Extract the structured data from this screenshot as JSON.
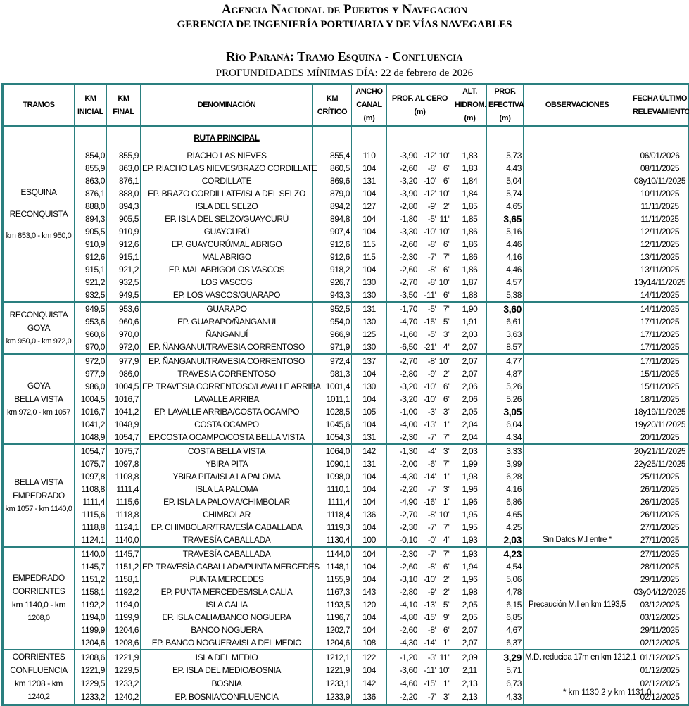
{
  "header": {
    "title": "Agencia Nacional de Puertos y Navegación",
    "subtitle": "GERENCIA DE INGENIERÍA PORTUARIA Y DE VÍAS NAVEGABLES",
    "section": "Río Paraná: Tramo Esquina - Confluencia",
    "date_line": "PROFUNDIDADES MÍNIMAS DÍA: 22 de febrero de 2026"
  },
  "columns": {
    "tramos": "TRAMOS",
    "km_inicial": [
      "KM",
      "INICIAL"
    ],
    "km_final": [
      "KM",
      "FINAL"
    ],
    "denominacion": "DENOMINACIÓN",
    "km_critico": [
      "KM",
      "CRÍTICO"
    ],
    "ancho": [
      "ANCHO",
      "CANAL",
      "(m)"
    ],
    "prof_cero": [
      "PROF. AL CERO",
      "(m)"
    ],
    "alt": [
      "ALT.",
      "HIDROM.",
      "(m)"
    ],
    "prof_efectiva": [
      "PROF.",
      "EFECTIVA",
      "(m)"
    ],
    "observaciones": "OBSERVACIONES",
    "fecha": [
      "FECHA ÚLTIMO",
      "RELEVAMIENTO"
    ]
  },
  "ruta_label": "RUTA PRINCIPAL",
  "groups": [
    {
      "name": [
        "ESQUINA",
        "RECONQUISTA"
      ],
      "range": "km 853,0 - km 950,0",
      "rows": [
        [
          "854,0",
          "855,9",
          "RIACHO LAS NIEVES",
          "855,4",
          "110",
          "-3,90",
          "-12'",
          "10\"",
          "1,83",
          "5,73",
          false,
          "",
          "06/01/2026"
        ],
        [
          "855,9",
          "863,0",
          "EP. RIACHO LAS NIEVES/BRAZO CORDILLATE",
          "860,5",
          "104",
          "-2,60",
          "-8'",
          "6\"",
          "1,83",
          "4,43",
          false,
          "",
          "08/11/2025"
        ],
        [
          "863,0",
          "876,1",
          "CORDILLATE",
          "869,6",
          "131",
          "-3,20",
          "-10'",
          "6\"",
          "1,84",
          "5,04",
          false,
          "",
          "08y10/11/2025"
        ],
        [
          "876,1",
          "888,0",
          "EP. BRAZO CORDILLATE/ISLA DEL SELZO",
          "879,0",
          "104",
          "-3,90",
          "-12'",
          "10\"",
          "1,84",
          "5,74",
          false,
          "",
          "10/11/2025"
        ],
        [
          "888,0",
          "894,3",
          "ISLA DEL SELZO",
          "894,2",
          "127",
          "-2,80",
          "-9'",
          "2\"",
          "1,85",
          "4,65",
          false,
          "",
          "11/11/2025"
        ],
        [
          "894,3",
          "905,5",
          "EP. ISLA DEL SELZO/GUAYCURÚ",
          "894,8",
          "104",
          "-1,80",
          "-5'",
          "11\"",
          "1,85",
          "3,65",
          true,
          "",
          "11/11/2025"
        ],
        [
          "905,5",
          "910,9",
          "GUAYCURÚ",
          "907,4",
          "104",
          "-3,30",
          "-10'",
          "10\"",
          "1,86",
          "5,16",
          false,
          "",
          "12/11/2025"
        ],
        [
          "910,9",
          "912,6",
          "EP. GUAYCURÚ/MAL ABRIGO",
          "912,6",
          "115",
          "-2,60",
          "-8'",
          "6\"",
          "1,86",
          "4,46",
          false,
          "",
          "12/11/2025"
        ],
        [
          "912,6",
          "915,1",
          "MAL ABRIGO",
          "912,6",
          "115",
          "-2,30",
          "-7'",
          "7\"",
          "1,86",
          "4,16",
          false,
          "",
          "13/11/2025"
        ],
        [
          "915,1",
          "921,2",
          "EP. MAL ABRIGO/LOS VASCOS",
          "918,2",
          "104",
          "-2,60",
          "-8'",
          "6\"",
          "1,86",
          "4,46",
          false,
          "",
          "13/11/2025"
        ],
        [
          "921,2",
          "932,5",
          "LOS VASCOS",
          "926,7",
          "130",
          "-2,70",
          "-8'",
          "10\"",
          "1,87",
          "4,57",
          false,
          "",
          "13y14/11/2025"
        ],
        [
          "932,5",
          "949,5",
          "EP. LOS VASCOS/GUARAPO",
          "943,3",
          "130",
          "-3,50",
          "-11'",
          "6\"",
          "1,88",
          "5,38",
          false,
          "",
          "14/11/2025"
        ]
      ]
    },
    {
      "name": [
        "RECONQUISTA",
        "GOYA"
      ],
      "range": "km 950,0 - km 972,0",
      "rows": [
        [
          "949,5",
          "953,6",
          "GUARAPO",
          "952,5",
          "131",
          "-1,70",
          "-5'",
          "7\"",
          "1,90",
          "3,60",
          true,
          "",
          "14/11/2025"
        ],
        [
          "953,6",
          "960,6",
          "EP. GUARAPO/ÑANGANUI",
          "954,0",
          "130",
          "-4,70",
          "-15'",
          "5\"",
          "1,91",
          "6,61",
          false,
          "",
          "17/11/2025"
        ],
        [
          "960,6",
          "970,0",
          "ÑANGANUÍ",
          "966,9",
          "125",
          "-1,60",
          "-5'",
          "3\"",
          "2,03",
          "3,63",
          false,
          "",
          "17/11/2025"
        ],
        [
          "970,0",
          "972,0",
          "EP. ÑANGANUI/TRAVESIA CORRENTOSO",
          "971,9",
          "130",
          "-6,50",
          "-21'",
          "4\"",
          "2,07",
          "8,57",
          false,
          "",
          "17/11/2025"
        ]
      ]
    },
    {
      "name": [
        "GOYA",
        "BELLA VISTA"
      ],
      "range": "km 972,0 - km 1057",
      "rows": [
        [
          "972,0",
          "977,9",
          "EP. ÑANGANUI/TRAVESIA CORRENTOSO",
          "972,4",
          "137",
          "-2,70",
          "-8'",
          "10\"",
          "2,07",
          "4,77",
          false,
          "",
          "17/11/2025"
        ],
        [
          "977,9",
          "986,0",
          "TRAVESIA CORRENTOSO",
          "981,3",
          "104",
          "-2,80",
          "-9'",
          "2\"",
          "2,07",
          "4,87",
          false,
          "",
          "15/11/2025"
        ],
        [
          "986,0",
          "1004,5",
          "EP. TRAVESIA CORRENTOSO/LAVALLE ARRIBA",
          "1001,4",
          "130",
          "-3,20",
          "-10'",
          "6\"",
          "2,06",
          "5,26",
          false,
          "",
          "15/11/2025"
        ],
        [
          "1004,5",
          "1016,7",
          "LAVALLE ARRIBA",
          "1011,1",
          "104",
          "-3,20",
          "-10'",
          "6\"",
          "2,06",
          "5,26",
          false,
          "",
          "18/11/2025"
        ],
        [
          "1016,7",
          "1041,2",
          "EP. LAVALLE ARRIBA/COSTA OCAMPO",
          "1028,5",
          "105",
          "-1,00",
          "-3'",
          "3\"",
          "2,05",
          "3,05",
          true,
          "",
          "18y19/11/2025"
        ],
        [
          "1041,2",
          "1048,9",
          "COSTA OCAMPO",
          "1045,6",
          "104",
          "-4,00",
          "-13'",
          "1\"",
          "2,04",
          "6,04",
          false,
          "",
          "19y20/11/2025"
        ],
        [
          "1048,9",
          "1054,7",
          "EP.COSTA OCAMPO/COSTA BELLA VISTA",
          "1054,3",
          "131",
          "-2,30",
          "-7'",
          "7\"",
          "2,04",
          "4,34",
          false,
          "",
          "20/11/2025"
        ]
      ]
    },
    {
      "name": [
        "BELLA VISTA",
        "EMPEDRADO"
      ],
      "range": "km 1057 - km 1140,0",
      "rows": [
        [
          "1054,7",
          "1075,7",
          "COSTA BELLA VISTA",
          "1064,0",
          "142",
          "-1,30",
          "-4'",
          "3\"",
          "2,03",
          "3,33",
          false,
          "",
          "20y21/11/2025"
        ],
        [
          "1075,7",
          "1097,8",
          "YBIRA PITA",
          "1090,1",
          "131",
          "-2,00",
          "-6'",
          "7\"",
          "1,99",
          "3,99",
          false,
          "",
          "22y25/11/2025"
        ],
        [
          "1097,8",
          "1108,8",
          "YBIRA PITA/ISLA LA PALOMA",
          "1098,0",
          "104",
          "-4,30",
          "-14'",
          "1\"",
          "1,98",
          "6,28",
          false,
          "",
          "25/11/2025"
        ],
        [
          "1108,8",
          "1111,4",
          "ISLA LA PALOMA",
          "1110,1",
          "104",
          "-2,20",
          "-7'",
          "3\"",
          "1,96",
          "4,16",
          false,
          "",
          "26/11/2025"
        ],
        [
          "1111,4",
          "1115,6",
          "EP. ISLA LA PALOMA/CHIMBOLAR",
          "1111,4",
          "104",
          "-4,90",
          "-16'",
          "1\"",
          "1,96",
          "6,86",
          false,
          "",
          "26/11/2025"
        ],
        [
          "1115,6",
          "1118,8",
          "CHIMBOLAR",
          "1118,4",
          "136",
          "-2,70",
          "-8'",
          "10\"",
          "1,95",
          "4,65",
          false,
          "",
          "26/11/2025"
        ],
        [
          "1118,8",
          "1124,1",
          "EP. CHIMBOLAR/TRAVESÍA CABALLADA",
          "1119,3",
          "104",
          "-2,30",
          "-7'",
          "7\"",
          "1,95",
          "4,25",
          false,
          "",
          "27/11/2025"
        ],
        [
          "1124,1",
          "1140,0",
          "TRAVESÍA CABALLADA",
          "1130,4",
          "100",
          "-0,10",
          "-0'",
          "4\"",
          "1,93",
          "2,03",
          true,
          "Sin Datos M.I entre *",
          "27/11/2025"
        ]
      ]
    },
    {
      "name": [
        "EMPEDRADO",
        "CORRIENTES",
        "km 1140,0 - km"
      ],
      "range": "1208,0",
      "rows": [
        [
          "1140,0",
          "1145,7",
          "TRAVESÍA CABALLADA",
          "1144,0",
          "104",
          "-2,30",
          "-7'",
          "7\"",
          "1,93",
          "4,23",
          true,
          "",
          "27/11/2025"
        ],
        [
          "1145,7",
          "1151,2",
          "EP. TRAVESÍA CABALLADA/PUNTA MERCEDES",
          "1148,1",
          "104",
          "-2,60",
          "-8'",
          "6\"",
          "1,94",
          "4,54",
          false,
          "",
          "28/11/2025"
        ],
        [
          "1151,2",
          "1158,1",
          "PUNTA MERCEDES",
          "1155,9",
          "104",
          "-3,10",
          "-10'",
          "2\"",
          "1,96",
          "5,06",
          false,
          "",
          "29/11/2025"
        ],
        [
          "1158,1",
          "1192,2",
          "EP. PUNTA MERCEDES/ISLA CALIA",
          "1167,3",
          "143",
          "-2,80",
          "-9'",
          "2\"",
          "1,98",
          "4,78",
          false,
          "",
          "03y04/12/2025"
        ],
        [
          "1192,2",
          "1194,0",
          "ISLA CALIA",
          "1193,5",
          "120",
          "-4,10",
          "-13'",
          "5\"",
          "2,05",
          "6,15",
          false,
          "Precaución M.I en km 1193,5",
          "03/12/2025"
        ],
        [
          "1194,0",
          "1199,9",
          "EP. ISLA CALIA/BANCO NOGUERA",
          "1196,7",
          "104",
          "-4,80",
          "-15'",
          "9\"",
          "2,05",
          "6,85",
          false,
          "",
          "03/12/2025"
        ],
        [
          "1199,9",
          "1204,6",
          "BANCO NOGUERA",
          "1202,7",
          "104",
          "-2,60",
          "-8'",
          "6\"",
          "2,07",
          "4,67",
          false,
          "",
          "29/11/2025"
        ],
        [
          "1204,6",
          "1208,6",
          "EP. BANCO NOGUERA/ISLA DEL MEDIO",
          "1204,6",
          "108",
          "-4,30",
          "-14'",
          "1\"",
          "2,07",
          "6,37",
          false,
          "",
          "02/12/2025"
        ]
      ]
    },
    {
      "name": [
        "CORRIENTES",
        "CONFLUENCIA",
        "km 1208 - km"
      ],
      "range": "1240,2",
      "rows": [
        [
          "1208,6",
          "1221,9",
          "ISLA DEL MEDIO",
          "1212,1",
          "122",
          "-1,20",
          "-3'",
          "11\"",
          "2,09",
          "3,29",
          true,
          "M.D. reducida 17m en km 1212,1",
          "01/12/2025"
        ],
        [
          "1221,9",
          "1229,5",
          "EP. ISLA DEL MEDIO/BOSNIA",
          "1221,9",
          "104",
          "-3,60",
          "-11'",
          "10\"",
          "2,11",
          "5,71",
          false,
          "",
          "01/12/2025"
        ],
        [
          "1229,5",
          "1233,2",
          "BOSNIA",
          "1233,1",
          "142",
          "-4,60",
          "-15'",
          "1\"",
          "2,13",
          "6,73",
          false,
          "",
          "02/12/2025"
        ],
        [
          "1233,2",
          "1240,2",
          "EP. BOSNIA/CONFLUENCIA",
          "1233,9",
          "136",
          "-2,20",
          "-7'",
          "3\"",
          "2,13",
          "4,33",
          false,
          "",
          "02/12/2025"
        ]
      ]
    }
  ],
  "footnote": "* km 1130,2 y km 1131,0",
  "colors": {
    "border": "#2a7f7f"
  }
}
